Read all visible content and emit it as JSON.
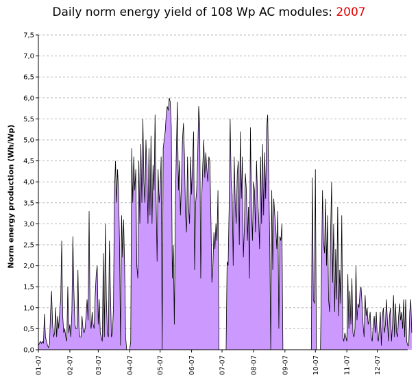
{
  "chart_data": {
    "type": "area",
    "title_main": "Daily norm energy yield of 108 Wp AC modules: ",
    "title_year": "2007",
    "ylabel": "Norm energy production (Wh/Wp)",
    "xlabel": "",
    "ylim": [
      0,
      7.5
    ],
    "ytick_labels": [
      "0,0",
      "0,5",
      "1,0",
      "1,5",
      "2,0",
      "2,5",
      "3,0",
      "3,5",
      "4,0",
      "4,5",
      "5,0",
      "5,5",
      "6,0",
      "6,5",
      "7,0",
      "7,5"
    ],
    "x_tick_labels": [
      "01-07",
      "02-07",
      "03-07",
      "04-07",
      "05-07",
      "06-07",
      "07-07",
      "08-07",
      "09-07",
      "10-07",
      "11-07",
      "12-07"
    ],
    "grid": true,
    "fill_color": "#cc99ff",
    "line_color": "#000000",
    "days": 365,
    "values": [
      0.1,
      0.15,
      0.2,
      0.15,
      0.2,
      0.15,
      0.85,
      0.3,
      0.2,
      0.1,
      0.05,
      0.15,
      0.9,
      1.4,
      0.6,
      0.3,
      0.4,
      1.0,
      0.3,
      0.8,
      0.5,
      0.9,
      1.2,
      2.6,
      0.8,
      0.4,
      0.5,
      0.3,
      0.2,
      1.5,
      0.4,
      0.6,
      0.3,
      0.9,
      2.7,
      1.4,
      0.6,
      0.5,
      0.5,
      1.9,
      0.5,
      0.3,
      0.3,
      0.8,
      0.5,
      0.4,
      0.5,
      0.8,
      1.2,
      0.7,
      3.3,
      0.7,
      0.5,
      0.9,
      0.6,
      0.5,
      1.3,
      1.8,
      2.0,
      0.6,
      1.2,
      0.4,
      0.3,
      0.2,
      2.3,
      0.3,
      3.0,
      1.2,
      0.4,
      0.3,
      2.6,
      1.4,
      0.3,
      0.4,
      1.0,
      3.8,
      4.5,
      3.5,
      4.3,
      3.8,
      2.5,
      0.1,
      3.2,
      2.2,
      3.1,
      2.0,
      0.3,
      0.0,
      0.0,
      0.0,
      0.0,
      0.2,
      4.8,
      3.5,
      4.6,
      3.8,
      4.3,
      2.0,
      1.7,
      4.5,
      3.0,
      4.9,
      3.5,
      5.5,
      4.0,
      3.5,
      5.0,
      4.3,
      3.0,
      4.8,
      3.2,
      5.1,
      3.0,
      4.4,
      3.8,
      5.6,
      3.6,
      2.1,
      4.3,
      3.5,
      3.8,
      4.6,
      0.0,
      4.8,
      5.0,
      5.2,
      5.6,
      5.8,
      5.7,
      6.0,
      5.9,
      5.3,
      1.7,
      2.5,
      0.6,
      3.4,
      4.8,
      5.9,
      3.8,
      4.5,
      3.2,
      4.0,
      5.0,
      5.4,
      4.6,
      3.2,
      2.8,
      4.6,
      3.4,
      3.0,
      4.6,
      3.7,
      4.5,
      5.2,
      1.9,
      3.5,
      3.8,
      4.6,
      5.8,
      5.4,
      1.7,
      3.6,
      4.4,
      5.0,
      4.1,
      4.7,
      4.3,
      4.0,
      4.6,
      4.5,
      3.2,
      1.6,
      2.0,
      2.8,
      2.4,
      3.0,
      2.6,
      3.8,
      0.0,
      0.0,
      0.0,
      0.0,
      0.0,
      0.0,
      0.0,
      0.0,
      2.1,
      2.0,
      3.4,
      5.5,
      4.0,
      3.7,
      2.0,
      4.6,
      3.5,
      3.0,
      4.2,
      4.5,
      2.5,
      5.2,
      3.6,
      4.6,
      2.2,
      2.9,
      4.2,
      3.8,
      2.6,
      3.4,
      1.7,
      5.3,
      3.4,
      2.6,
      4.0,
      3.8,
      2.8,
      4.5,
      3.6,
      3.2,
      2.4,
      4.6,
      3.0,
      4.9,
      3.2,
      4.7,
      3.6,
      5.3,
      5.6,
      4.1,
      2.6,
      0.0,
      3.8,
      1.9,
      3.6,
      3.2,
      2.9,
      2.4,
      3.3,
      0.5,
      2.7,
      2.6,
      3.0,
      0.0,
      0.0,
      0.0,
      0.0,
      0.0,
      0.0,
      0.0,
      0.0,
      0.0,
      0.0,
      0.0,
      0.0,
      0.0,
      0.0,
      0.0,
      0.0,
      0.0,
      0.0,
      0.0,
      0.0,
      0.0,
      0.0,
      0.0,
      0.0,
      0.0,
      0.0,
      0.0,
      0.0,
      0.0,
      4.1,
      1.2,
      1.1,
      4.3,
      0.0,
      0.0,
      0.0,
      0.0,
      0.0,
      1.8,
      3.8,
      2.6,
      2.3,
      3.6,
      2.0,
      3.2,
      1.2,
      0.9,
      2.8,
      4.0,
      1.6,
      3.0,
      0.9,
      2.4,
      1.2,
      3.4,
      0.8,
      1.9,
      1.1,
      3.2,
      0.3,
      0.2,
      0.4,
      0.3,
      0.2,
      1.8,
      0.5,
      1.4,
      0.6,
      1.7,
      0.4,
      0.3,
      0.5,
      2.0,
      0.7,
      1.1,
      1.0,
      1.4,
      1.5,
      1.1,
      0.6,
      0.3,
      1.3,
      0.8,
      1.0,
      0.6,
      0.7,
      0.9,
      0.3,
      0.2,
      0.6,
      0.8,
      0.4,
      0.9,
      0.3,
      0.2,
      0.5,
      0.9,
      0.1,
      0.8,
      1.0,
      0.4,
      0.6,
      1.2,
      0.7,
      0.2,
      0.8,
      1.0,
      0.2,
      0.6,
      1.3,
      0.3,
      1.1,
      0.4,
      0.3,
      0.8,
      1.1,
      0.7,
      0.9,
      0.5,
      1.2,
      0.3,
      1.2,
      0.2,
      0.1,
      0.1,
      0.9,
      1.2,
      0.4
    ]
  }
}
